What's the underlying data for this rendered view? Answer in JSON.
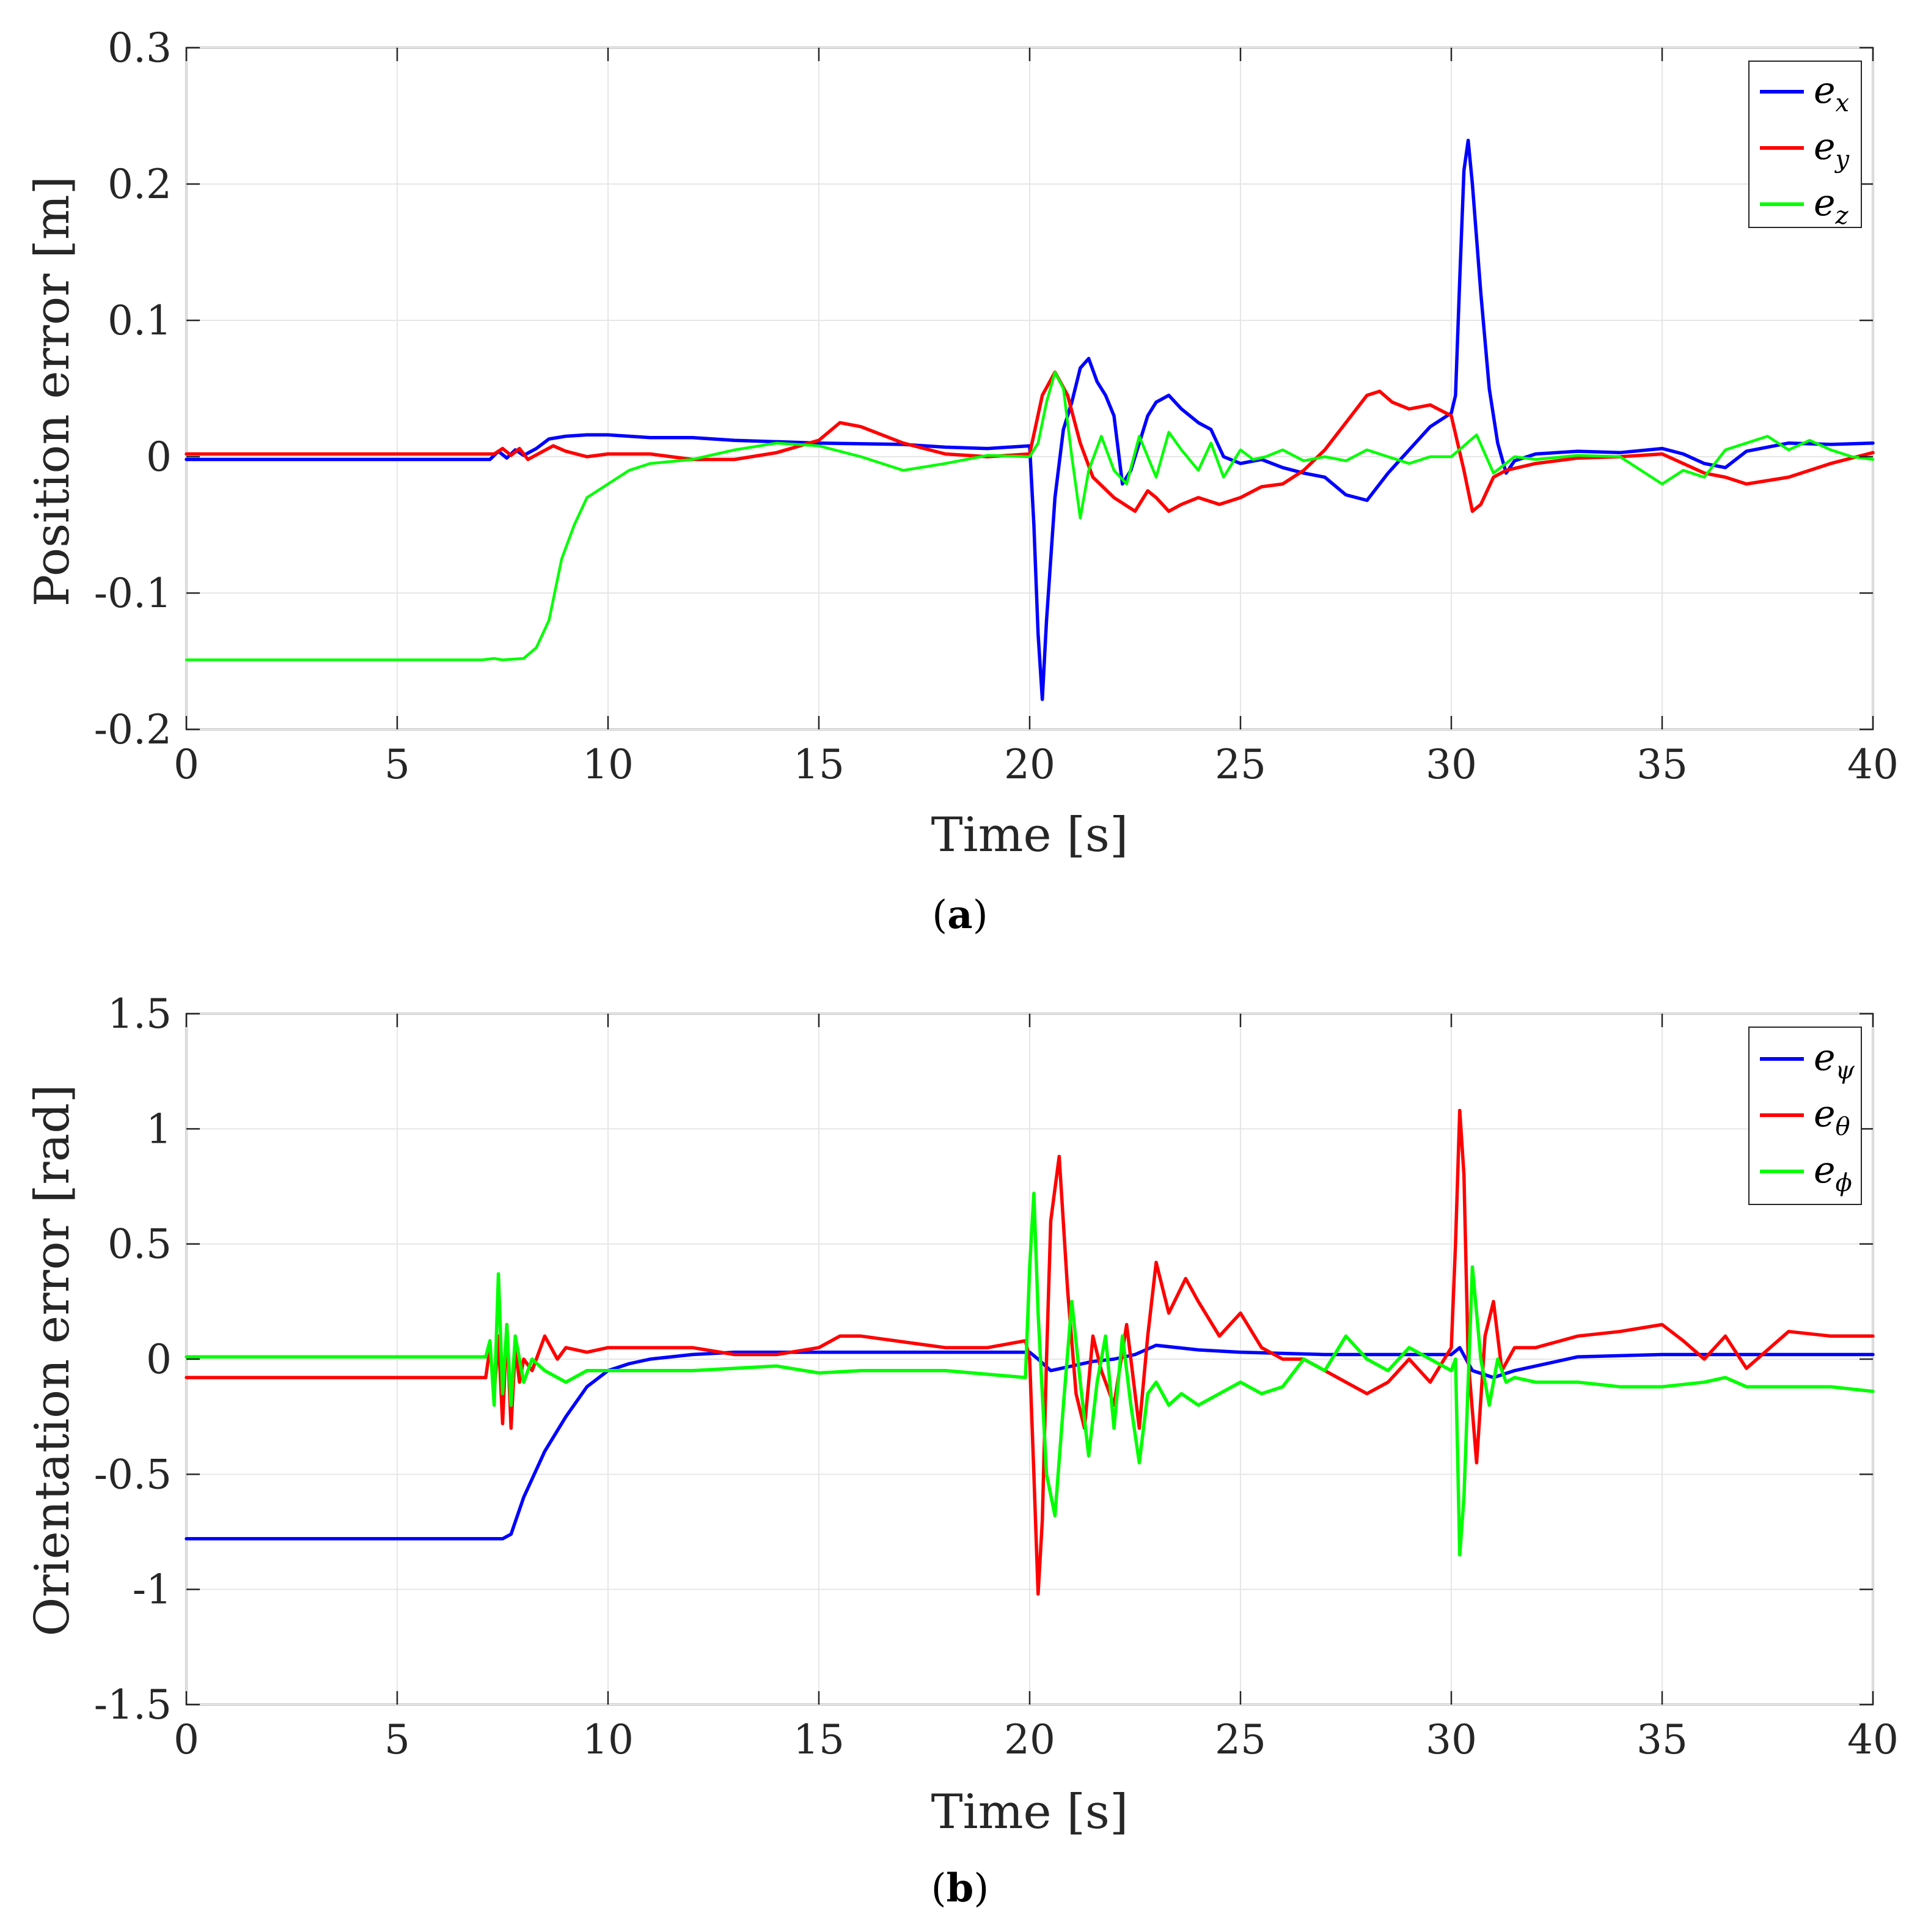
{
  "chart_data": [
    {
      "type": "line",
      "panel": "a",
      "xlabel": "Time [s]",
      "ylabel": "Position error [m]",
      "xlim": [
        0,
        40
      ],
      "ylim": [
        -0.2,
        0.3
      ],
      "xticks": [
        "0",
        "5",
        "10",
        "15",
        "20",
        "25",
        "30",
        "35",
        "40"
      ],
      "yticks": [
        "-0.2",
        "-0.1",
        "0",
        "0.1",
        "0.2",
        "0.3"
      ],
      "grid": true,
      "legend_position": "top-right",
      "series": [
        {
          "name": "e",
          "sub": "x",
          "color": "#0000ff",
          "x": [
            0,
            7.2,
            7.4,
            7.6,
            7.8,
            8.0,
            8.3,
            8.6,
            9.0,
            9.5,
            10,
            11,
            12,
            13,
            15,
            17,
            18,
            19,
            20,
            20.1,
            20.2,
            20.3,
            20.4,
            20.6,
            20.8,
            21.0,
            21.2,
            21.4,
            21.6,
            21.8,
            22.0,
            22.2,
            22.4,
            22.6,
            22.8,
            23.0,
            23.3,
            23.6,
            24.0,
            24.3,
            24.6,
            25.0,
            25.5,
            26.0,
            26.5,
            27.0,
            27.5,
            28.0,
            28.5,
            29.0,
            29.5,
            30.0,
            30.1,
            30.2,
            30.3,
            30.4,
            30.5,
            30.7,
            30.9,
            31.1,
            31.3,
            31.5,
            32,
            33,
            34,
            35,
            35.5,
            36,
            36.5,
            37,
            38,
            39,
            40
          ],
          "values": [
            -0.002,
            -0.002,
            0.004,
            -0.001,
            0.005,
            0.001,
            0.006,
            0.013,
            0.015,
            0.016,
            0.016,
            0.014,
            0.014,
            0.012,
            0.01,
            0.009,
            0.007,
            0.006,
            0.008,
            -0.05,
            -0.13,
            -0.178,
            -0.12,
            -0.03,
            0.02,
            0.04,
            0.065,
            0.072,
            0.055,
            0.045,
            0.03,
            -0.02,
            -0.01,
            0.01,
            0.03,
            0.04,
            0.045,
            0.035,
            0.025,
            0.02,
            0.0,
            -0.005,
            -0.002,
            -0.008,
            -0.012,
            -0.015,
            -0.028,
            -0.032,
            -0.012,
            0.005,
            0.022,
            0.032,
            0.045,
            0.13,
            0.21,
            0.232,
            0.2,
            0.12,
            0.05,
            0.01,
            -0.012,
            -0.003,
            0.002,
            0.004,
            0.003,
            0.006,
            0.002,
            -0.005,
            -0.008,
            0.004,
            0.01,
            0.009,
            0.01
          ]
        },
        {
          "name": "e",
          "sub": "y",
          "color": "#ff0000",
          "x": [
            0,
            7.3,
            7.5,
            7.7,
            7.9,
            8.1,
            8.4,
            8.7,
            9.0,
            9.5,
            10,
            11,
            12,
            13,
            14,
            15,
            15.5,
            16,
            17,
            18,
            19,
            20,
            20.3,
            20.6,
            20.9,
            21.2,
            21.5,
            22.0,
            22.5,
            22.8,
            23.0,
            23.3,
            23.6,
            24.0,
            24.5,
            25.0,
            25.5,
            26.0,
            26.5,
            27.0,
            27.5,
            28.0,
            28.3,
            28.6,
            29.0,
            29.5,
            30.0,
            30.3,
            30.5,
            30.7,
            31.0,
            31.3,
            32,
            33,
            34,
            35,
            35.5,
            36,
            36.5,
            37,
            38,
            39,
            40
          ],
          "values": [
            0.002,
            0.002,
            0.006,
            0.001,
            0.006,
            -0.002,
            0.003,
            0.008,
            0.004,
            0.0,
            0.002,
            0.002,
            -0.002,
            -0.002,
            0.003,
            0.012,
            0.025,
            0.022,
            0.01,
            0.002,
            0.0,
            0.002,
            0.045,
            0.062,
            0.045,
            0.01,
            -0.015,
            -0.03,
            -0.04,
            -0.025,
            -0.03,
            -0.04,
            -0.035,
            -0.03,
            -0.035,
            -0.03,
            -0.022,
            -0.02,
            -0.01,
            0.005,
            0.025,
            0.045,
            0.048,
            0.04,
            0.035,
            0.038,
            0.03,
            -0.01,
            -0.04,
            -0.035,
            -0.015,
            -0.01,
            -0.005,
            -0.001,
            0.0,
            0.002,
            -0.005,
            -0.012,
            -0.015,
            -0.02,
            -0.015,
            -0.005,
            0.003
          ]
        },
        {
          "name": "e",
          "sub": "z",
          "color": "#00ff00",
          "x": [
            0,
            7.0,
            7.3,
            7.5,
            8.0,
            8.3,
            8.6,
            8.9,
            9.2,
            9.5,
            10.0,
            10.5,
            11,
            12,
            13,
            14,
            15,
            16,
            17,
            18,
            19,
            20,
            20.2,
            20.4,
            20.6,
            20.8,
            21.0,
            21.2,
            21.4,
            21.7,
            22.0,
            22.3,
            22.6,
            23.0,
            23.3,
            23.6,
            24.0,
            24.3,
            24.6,
            25.0,
            25.3,
            25.6,
            26.0,
            26.5,
            27.0,
            27.5,
            28.0,
            28.5,
            29.0,
            29.5,
            30.0,
            30.3,
            30.6,
            31.0,
            31.5,
            32,
            33,
            34,
            35,
            35.5,
            36,
            36.5,
            37,
            37.5,
            38,
            38.5,
            39,
            39.5,
            40
          ],
          "values": [
            -0.149,
            -0.149,
            -0.148,
            -0.149,
            -0.148,
            -0.14,
            -0.12,
            -0.075,
            -0.05,
            -0.03,
            -0.02,
            -0.01,
            -0.005,
            -0.002,
            0.005,
            0.01,
            0.008,
            0.0,
            -0.01,
            -0.005,
            0.001,
            0.0,
            0.01,
            0.04,
            0.062,
            0.05,
            0.0,
            -0.045,
            -0.01,
            0.015,
            -0.01,
            -0.02,
            0.015,
            -0.015,
            0.018,
            0.005,
            -0.01,
            0.01,
            -0.015,
            0.005,
            -0.002,
            0.0,
            0.005,
            -0.003,
            0.0,
            -0.003,
            0.005,
            0.0,
            -0.005,
            0.0,
            0.0,
            0.008,
            0.016,
            -0.012,
            0.0,
            -0.002,
            0.001,
            0.0,
            -0.02,
            -0.01,
            -0.015,
            0.005,
            0.01,
            0.015,
            0.005,
            0.012,
            0.005,
            0.0,
            -0.002
          ]
        }
      ]
    },
    {
      "type": "line",
      "panel": "b",
      "xlabel": "Time [s]",
      "ylabel": "Orientation error [rad]",
      "xlim": [
        0,
        40
      ],
      "ylim": [
        -1.5,
        1.5
      ],
      "xticks": [
        "0",
        "5",
        "10",
        "15",
        "20",
        "25",
        "30",
        "35",
        "40"
      ],
      "yticks": [
        "-1.5",
        "-1",
        "-0.5",
        "0",
        "0.5",
        "1",
        "1.5"
      ],
      "grid": true,
      "legend_position": "top-right",
      "series": [
        {
          "name": "e",
          "sub": "ψ",
          "color": "#0000ff",
          "x": [
            0,
            7.5,
            7.7,
            8.0,
            8.5,
            9.0,
            9.5,
            10.0,
            10.5,
            11.0,
            12.0,
            13,
            15,
            17,
            19,
            20,
            20.2,
            20.5,
            21,
            21.5,
            22.0,
            22.5,
            23.0,
            24.0,
            25,
            27,
            29,
            30.0,
            30.2,
            30.5,
            31.0,
            31.5,
            32.0,
            33,
            35,
            37,
            40
          ],
          "values": [
            -0.78,
            -0.78,
            -0.76,
            -0.6,
            -0.4,
            -0.25,
            -0.12,
            -0.05,
            -0.02,
            0.0,
            0.02,
            0.03,
            0.03,
            0.03,
            0.03,
            0.03,
            0.0,
            -0.05,
            -0.03,
            -0.01,
            0.0,
            0.02,
            0.06,
            0.04,
            0.03,
            0.02,
            0.02,
            0.02,
            0.05,
            -0.05,
            -0.08,
            -0.05,
            -0.03,
            0.01,
            0.02,
            0.02,
            0.02
          ]
        },
        {
          "name": "e",
          "sub": "θ",
          "color": "#ff0000",
          "x": [
            0,
            7.1,
            7.2,
            7.3,
            7.4,
            7.5,
            7.6,
            7.7,
            7.8,
            7.9,
            8.0,
            8.2,
            8.5,
            8.8,
            9.0,
            9.5,
            10,
            12,
            13,
            14,
            15,
            15.5,
            16,
            18,
            19,
            19.9,
            20.0,
            20.1,
            20.2,
            20.3,
            20.4,
            20.5,
            20.7,
            20.9,
            21.1,
            21.3,
            21.5,
            21.7,
            22.0,
            22.3,
            22.6,
            22.8,
            23.0,
            23.3,
            23.7,
            24.0,
            24.5,
            25.0,
            25.5,
            26.0,
            26.5,
            27.0,
            27.5,
            28.0,
            28.5,
            29.0,
            29.5,
            30.0,
            30.1,
            30.2,
            30.3,
            30.4,
            30.6,
            30.8,
            31.0,
            31.2,
            31.5,
            32,
            33,
            34,
            35,
            35.5,
            36,
            36.5,
            37,
            38,
            39,
            40
          ],
          "values": [
            -0.08,
            -0.08,
            0.05,
            -0.15,
            0.1,
            -0.28,
            0.15,
            -0.3,
            0.05,
            -0.1,
            0.0,
            -0.05,
            0.1,
            0.0,
            0.05,
            0.03,
            0.05,
            0.05,
            0.02,
            0.02,
            0.05,
            0.1,
            0.1,
            0.05,
            0.05,
            0.08,
            0.0,
            -0.5,
            -1.02,
            -0.7,
            0.0,
            0.6,
            0.88,
            0.3,
            -0.15,
            -0.3,
            0.1,
            -0.05,
            -0.2,
            0.15,
            -0.3,
            0.1,
            0.42,
            0.2,
            0.35,
            0.25,
            0.1,
            0.2,
            0.05,
            0.0,
            0.0,
            -0.05,
            -0.1,
            -0.15,
            -0.1,
            0.0,
            -0.1,
            0.05,
            0.5,
            1.08,
            0.8,
            0.0,
            -0.45,
            0.1,
            0.25,
            -0.05,
            0.05,
            0.05,
            0.1,
            0.12,
            0.15,
            0.08,
            0.0,
            0.1,
            -0.04,
            0.12,
            0.1,
            0.1
          ]
        },
        {
          "name": "e",
          "sub": "ϕ",
          "color": "#00ff00",
          "x": [
            0,
            7.1,
            7.2,
            7.3,
            7.4,
            7.5,
            7.6,
            7.7,
            7.8,
            8.0,
            8.2,
            8.5,
            9.0,
            9.5,
            10,
            12,
            14,
            15,
            16,
            18,
            19.9,
            20.0,
            20.1,
            20.2,
            20.4,
            20.6,
            20.8,
            21.0,
            21.2,
            21.4,
            21.6,
            21.8,
            22.0,
            22.2,
            22.4,
            22.6,
            22.8,
            23.0,
            23.3,
            23.6,
            24.0,
            24.5,
            25.0,
            25.5,
            26.0,
            26.5,
            27.0,
            27.5,
            28.0,
            28.5,
            29.0,
            29.5,
            30.0,
            30.1,
            30.2,
            30.3,
            30.5,
            30.7,
            30.9,
            31.1,
            31.3,
            31.5,
            32,
            33,
            34,
            35,
            36,
            36.5,
            37,
            38,
            39,
            40
          ],
          "values": [
            0.01,
            0.01,
            0.08,
            -0.2,
            0.37,
            -0.15,
            0.15,
            -0.2,
            0.1,
            -0.1,
            0.0,
            -0.05,
            -0.1,
            -0.05,
            -0.05,
            -0.05,
            -0.03,
            -0.06,
            -0.05,
            -0.05,
            -0.08,
            0.4,
            0.72,
            0.2,
            -0.5,
            -0.68,
            -0.2,
            0.25,
            -0.1,
            -0.42,
            -0.1,
            0.1,
            -0.3,
            0.1,
            -0.2,
            -0.45,
            -0.15,
            -0.1,
            -0.2,
            -0.15,
            -0.2,
            -0.15,
            -0.1,
            -0.15,
            -0.12,
            0.0,
            -0.05,
            0.1,
            0.0,
            -0.05,
            0.05,
            0.0,
            -0.05,
            0.0,
            -0.85,
            -0.6,
            0.4,
            0.0,
            -0.2,
            0.0,
            -0.1,
            -0.08,
            -0.1,
            -0.1,
            -0.12,
            -0.12,
            -0.1,
            -0.08,
            -0.12,
            -0.12,
            -0.12,
            -0.14
          ]
        }
      ]
    }
  ],
  "captions": {
    "a": "a",
    "b": "b"
  }
}
